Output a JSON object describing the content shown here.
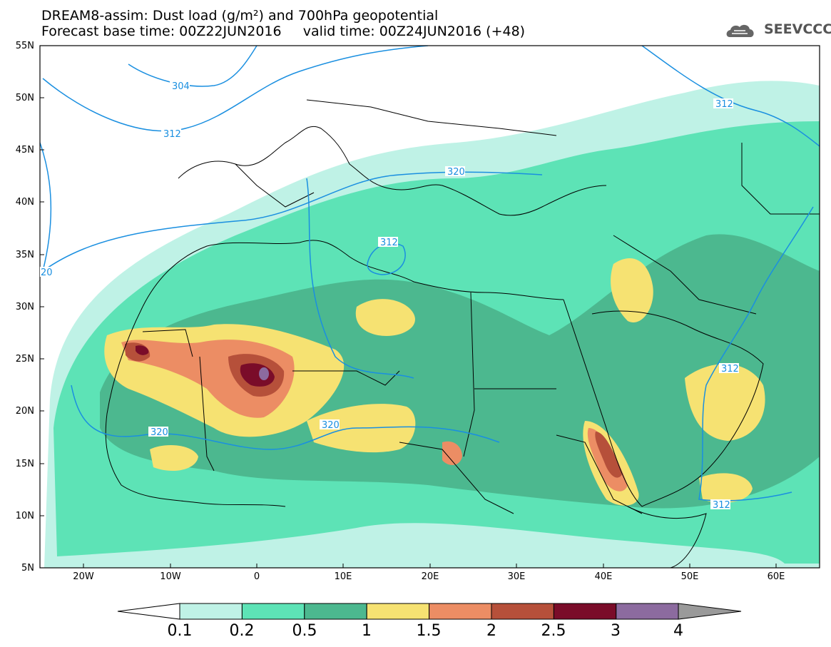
{
  "title": {
    "line1": "DREAM8-assim: Dust load (g/m²) and 700hPa geopotential",
    "line2": "Forecast base time: 00Z22JUN2016     valid time: 00Z24JUN2016 (+48)"
  },
  "logo": {
    "text": "SEEVCCC",
    "icon": "cloud-icon"
  },
  "axes": {
    "lat_labels": [
      "55N",
      "50N",
      "45N",
      "40N",
      "35N",
      "30N",
      "25N",
      "20N",
      "15N",
      "10N",
      "5N"
    ],
    "lon_labels": [
      "20W",
      "10W",
      "0",
      "10E",
      "20E",
      "30E",
      "40E",
      "50E",
      "60E"
    ]
  },
  "contours": [
    "304",
    "312",
    "312",
    "320",
    "312",
    "320",
    "320",
    "312",
    "312",
    "20",
    "312"
  ],
  "legend": {
    "labels": [
      "0.1",
      "0.2",
      "0.5",
      "1",
      "1.5",
      "2",
      "2.5",
      "3",
      "4"
    ],
    "colors": [
      "#bff2e6",
      "#5de3b6",
      "#4cb88f",
      "#f6e272",
      "#ec8d64",
      "#b6503a",
      "#7a0c29",
      "#8c6b9f"
    ],
    "under_color": "#ffffff",
    "over_color": "#9a9a9a"
  },
  "colors": {
    "contour": "#1a8fe0",
    "border": "#000000"
  }
}
